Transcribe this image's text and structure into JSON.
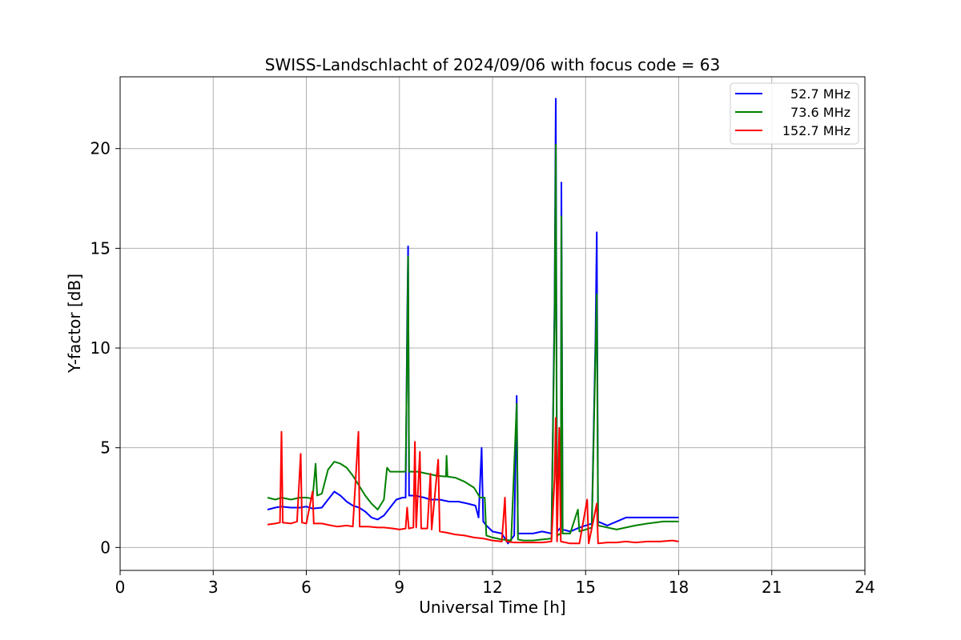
{
  "chart_data": {
    "type": "line",
    "title": "SWISS-Landschlacht of 2024/09/06 with focus code = 63",
    "xlabel": "Universal Time [h]",
    "ylabel": "Y-factor [dB]",
    "xlim": [
      0,
      24
    ],
    "ylim": [
      -1.15,
      23.6
    ],
    "xticks": [
      0,
      3,
      6,
      9,
      12,
      15,
      18,
      21,
      24
    ],
    "yticks": [
      0,
      5,
      10,
      15,
      20
    ],
    "grid": true,
    "legend_position": "top-right",
    "series": [
      {
        "name": "52.7 MHz",
        "color": "#0000ff",
        "points": [
          [
            4.75,
            1.9
          ],
          [
            5.0,
            2.0
          ],
          [
            5.2,
            2.05
          ],
          [
            5.5,
            2.0
          ],
          [
            5.8,
            2.0
          ],
          [
            6.0,
            2.05
          ],
          [
            6.2,
            1.95
          ],
          [
            6.5,
            2.0
          ],
          [
            6.7,
            2.4
          ],
          [
            6.9,
            2.8
          ],
          [
            7.1,
            2.6
          ],
          [
            7.3,
            2.3
          ],
          [
            7.5,
            2.1
          ],
          [
            7.7,
            2.0
          ],
          [
            7.9,
            1.8
          ],
          [
            8.1,
            1.5
          ],
          [
            8.3,
            1.4
          ],
          [
            8.5,
            1.6
          ],
          [
            8.7,
            2.0
          ],
          [
            8.9,
            2.4
          ],
          [
            9.1,
            2.5
          ],
          [
            9.2,
            2.5
          ],
          [
            9.25,
            11.2
          ],
          [
            9.28,
            15.1
          ],
          [
            9.31,
            2.6
          ],
          [
            9.5,
            2.6
          ],
          [
            9.8,
            2.5
          ],
          [
            10.0,
            2.4
          ],
          [
            10.3,
            2.4
          ],
          [
            10.6,
            2.3
          ],
          [
            10.9,
            2.3
          ],
          [
            11.2,
            2.2
          ],
          [
            11.45,
            2.1
          ],
          [
            11.55,
            1.5
          ],
          [
            11.65,
            5.0
          ],
          [
            11.7,
            1.3
          ],
          [
            11.8,
            1.1
          ],
          [
            12.0,
            0.8
          ],
          [
            12.3,
            0.7
          ],
          [
            12.5,
            0.2
          ],
          [
            12.7,
            0.6
          ],
          [
            12.78,
            7.6
          ],
          [
            12.82,
            0.7
          ],
          [
            13.0,
            0.7
          ],
          [
            13.3,
            0.7
          ],
          [
            13.6,
            0.8
          ],
          [
            13.9,
            0.7
          ],
          [
            14.0,
            12.3
          ],
          [
            14.04,
            22.5
          ],
          [
            14.08,
            0.8
          ],
          [
            14.2,
            1.0
          ],
          [
            14.22,
            18.3
          ],
          [
            14.26,
            0.9
          ],
          [
            14.5,
            0.8
          ],
          [
            14.8,
            1.0
          ],
          [
            15.0,
            1.1
          ],
          [
            15.2,
            1.2
          ],
          [
            15.32,
            10.5
          ],
          [
            15.36,
            15.8
          ],
          [
            15.4,
            1.3
          ],
          [
            15.7,
            1.1
          ],
          [
            16.0,
            1.3
          ],
          [
            16.3,
            1.5
          ],
          [
            16.6,
            1.5
          ],
          [
            17.0,
            1.5
          ],
          [
            17.5,
            1.5
          ],
          [
            18.0,
            1.5
          ]
        ]
      },
      {
        "name": "73.6 MHz",
        "color": "#008000",
        "points": [
          [
            4.75,
            2.5
          ],
          [
            5.0,
            2.4
          ],
          [
            5.2,
            2.5
          ],
          [
            5.5,
            2.4
          ],
          [
            5.8,
            2.5
          ],
          [
            6.0,
            2.5
          ],
          [
            6.2,
            2.45
          ],
          [
            6.3,
            4.2
          ],
          [
            6.35,
            2.6
          ],
          [
            6.5,
            2.7
          ],
          [
            6.7,
            3.9
          ],
          [
            6.9,
            4.3
          ],
          [
            7.1,
            4.2
          ],
          [
            7.3,
            4.0
          ],
          [
            7.5,
            3.6
          ],
          [
            7.7,
            3.1
          ],
          [
            7.9,
            2.6
          ],
          [
            8.1,
            2.2
          ],
          [
            8.3,
            1.9
          ],
          [
            8.5,
            2.4
          ],
          [
            8.6,
            4.0
          ],
          [
            8.7,
            3.8
          ],
          [
            8.9,
            3.8
          ],
          [
            9.1,
            3.8
          ],
          [
            9.2,
            3.8
          ],
          [
            9.25,
            10.0
          ],
          [
            9.28,
            14.6
          ],
          [
            9.31,
            3.8
          ],
          [
            9.6,
            3.8
          ],
          [
            9.9,
            3.7
          ],
          [
            10.2,
            3.6
          ],
          [
            10.5,
            3.55
          ],
          [
            10.52,
            4.6
          ],
          [
            10.55,
            3.55
          ],
          [
            10.8,
            3.5
          ],
          [
            11.1,
            3.3
          ],
          [
            11.4,
            3.0
          ],
          [
            11.6,
            2.5
          ],
          [
            11.75,
            2.5
          ],
          [
            11.8,
            0.6
          ],
          [
            12.0,
            0.5
          ],
          [
            12.3,
            0.4
          ],
          [
            12.6,
            0.35
          ],
          [
            12.78,
            7.2
          ],
          [
            12.82,
            0.4
          ],
          [
            13.0,
            0.35
          ],
          [
            13.3,
            0.35
          ],
          [
            13.6,
            0.4
          ],
          [
            13.9,
            0.45
          ],
          [
            14.0,
            11.5
          ],
          [
            14.04,
            20.2
          ],
          [
            14.08,
            0.6
          ],
          [
            14.2,
            0.7
          ],
          [
            14.22,
            16.6
          ],
          [
            14.26,
            0.7
          ],
          [
            14.5,
            0.7
          ],
          [
            14.75,
            1.9
          ],
          [
            14.8,
            0.8
          ],
          [
            15.0,
            0.9
          ],
          [
            15.2,
            1.0
          ],
          [
            15.32,
            9.8
          ],
          [
            15.36,
            12.7
          ],
          [
            15.4,
            1.1
          ],
          [
            15.7,
            1.0
          ],
          [
            16.0,
            0.9
          ],
          [
            16.3,
            1.0
          ],
          [
            16.6,
            1.1
          ],
          [
            17.0,
            1.2
          ],
          [
            17.5,
            1.3
          ],
          [
            18.0,
            1.3
          ]
        ]
      },
      {
        "name": "152.7 MHz",
        "color": "#ff0000",
        "points": [
          [
            4.75,
            1.15
          ],
          [
            5.0,
            1.2
          ],
          [
            5.15,
            1.25
          ],
          [
            5.2,
            5.8
          ],
          [
            5.24,
            1.25
          ],
          [
            5.5,
            1.2
          ],
          [
            5.7,
            1.3
          ],
          [
            5.82,
            4.7
          ],
          [
            5.86,
            1.25
          ],
          [
            6.0,
            1.2
          ],
          [
            6.2,
            2.8
          ],
          [
            6.24,
            1.2
          ],
          [
            6.5,
            1.2
          ],
          [
            6.8,
            1.1
          ],
          [
            7.0,
            1.05
          ],
          [
            7.3,
            1.1
          ],
          [
            7.5,
            1.05
          ],
          [
            7.68,
            5.8
          ],
          [
            7.72,
            1.05
          ],
          [
            8.0,
            1.05
          ],
          [
            8.3,
            1.0
          ],
          [
            8.5,
            1.0
          ],
          [
            8.8,
            0.95
          ],
          [
            9.0,
            0.9
          ],
          [
            9.2,
            0.95
          ],
          [
            9.25,
            2.0
          ],
          [
            9.3,
            0.95
          ],
          [
            9.45,
            1.0
          ],
          [
            9.5,
            5.3
          ],
          [
            9.54,
            1.0
          ],
          [
            9.66,
            4.8
          ],
          [
            9.7,
            0.95
          ],
          [
            9.9,
            0.95
          ],
          [
            10.0,
            3.7
          ],
          [
            10.04,
            0.9
          ],
          [
            10.25,
            4.4
          ],
          [
            10.3,
            0.8
          ],
          [
            10.5,
            0.75
          ],
          [
            10.8,
            0.65
          ],
          [
            11.1,
            0.6
          ],
          [
            11.4,
            0.5
          ],
          [
            11.7,
            0.45
          ],
          [
            12.0,
            0.35
          ],
          [
            12.3,
            0.3
          ],
          [
            12.4,
            2.5
          ],
          [
            12.45,
            0.3
          ],
          [
            12.7,
            0.25
          ],
          [
            13.0,
            0.25
          ],
          [
            13.3,
            0.25
          ],
          [
            13.6,
            0.25
          ],
          [
            13.9,
            0.3
          ],
          [
            14.0,
            3.5
          ],
          [
            14.04,
            6.5
          ],
          [
            14.08,
            0.3
          ],
          [
            14.15,
            6.0
          ],
          [
            14.2,
            0.3
          ],
          [
            14.5,
            0.2
          ],
          [
            14.8,
            0.2
          ],
          [
            15.05,
            2.4
          ],
          [
            15.1,
            0.2
          ],
          [
            15.36,
            2.2
          ],
          [
            15.4,
            0.2
          ],
          [
            15.7,
            0.25
          ],
          [
            16.0,
            0.25
          ],
          [
            16.3,
            0.3
          ],
          [
            16.6,
            0.25
          ],
          [
            17.0,
            0.3
          ],
          [
            17.4,
            0.3
          ],
          [
            17.8,
            0.35
          ],
          [
            18.0,
            0.3
          ]
        ]
      }
    ]
  }
}
